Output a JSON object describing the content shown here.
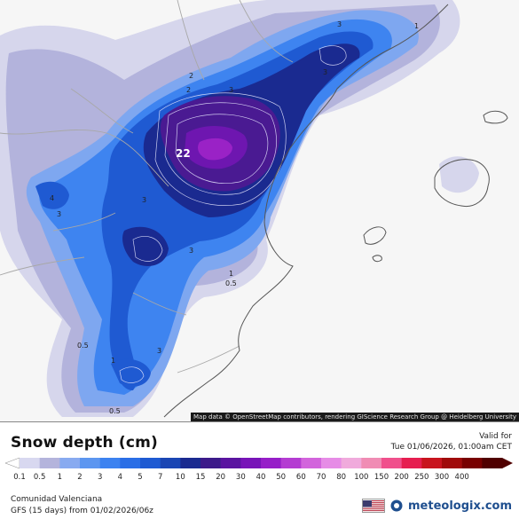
{
  "map": {
    "attribution": "Map data © OpenStreetMap contributors, rendering GIScience Research Group @ Heidelberg University",
    "contour_labels": [
      "22",
      "3",
      "1",
      "2",
      "2",
      "3",
      "3",
      "4",
      "3",
      "3",
      "3",
      "1",
      "0.5",
      "0.5",
      "1",
      "3",
      "0.5"
    ]
  },
  "title": "Snow depth (cm)",
  "valid": {
    "label": "Valid for",
    "date": "Tue 01/06/2026, 01:00am CET"
  },
  "colorbar": {
    "ticks": [
      "0.1",
      "0.5",
      "1",
      "2",
      "3",
      "4",
      "5",
      "7",
      "10",
      "15",
      "20",
      "30",
      "40",
      "50",
      "60",
      "70",
      "80",
      "100",
      "150",
      "200",
      "250",
      "300",
      "400"
    ],
    "colors": [
      "#d8d8f0",
      "#b4b4dc",
      "#88aaf0",
      "#5c96f0",
      "#3c82f0",
      "#2a6ee6",
      "#1e5ad2",
      "#1a46b4",
      "#1a2a90",
      "#3c1a8a",
      "#5a14a0",
      "#7814b8",
      "#961ec8",
      "#b43cd2",
      "#d264dc",
      "#e68ce6",
      "#f0aadc",
      "#f08cb4",
      "#f0508c",
      "#e61e50",
      "#c8141e",
      "#a00a0a",
      "#780000",
      "#500000"
    ]
  },
  "region": "Comunidad Valenciana",
  "run": "GFS (15 days) from  01/02/2026/06z",
  "brand": {
    "name": "meteologix.com",
    "flag_icon": "us-flag-icon",
    "logo_icon": "meteologix-logo-icon"
  }
}
